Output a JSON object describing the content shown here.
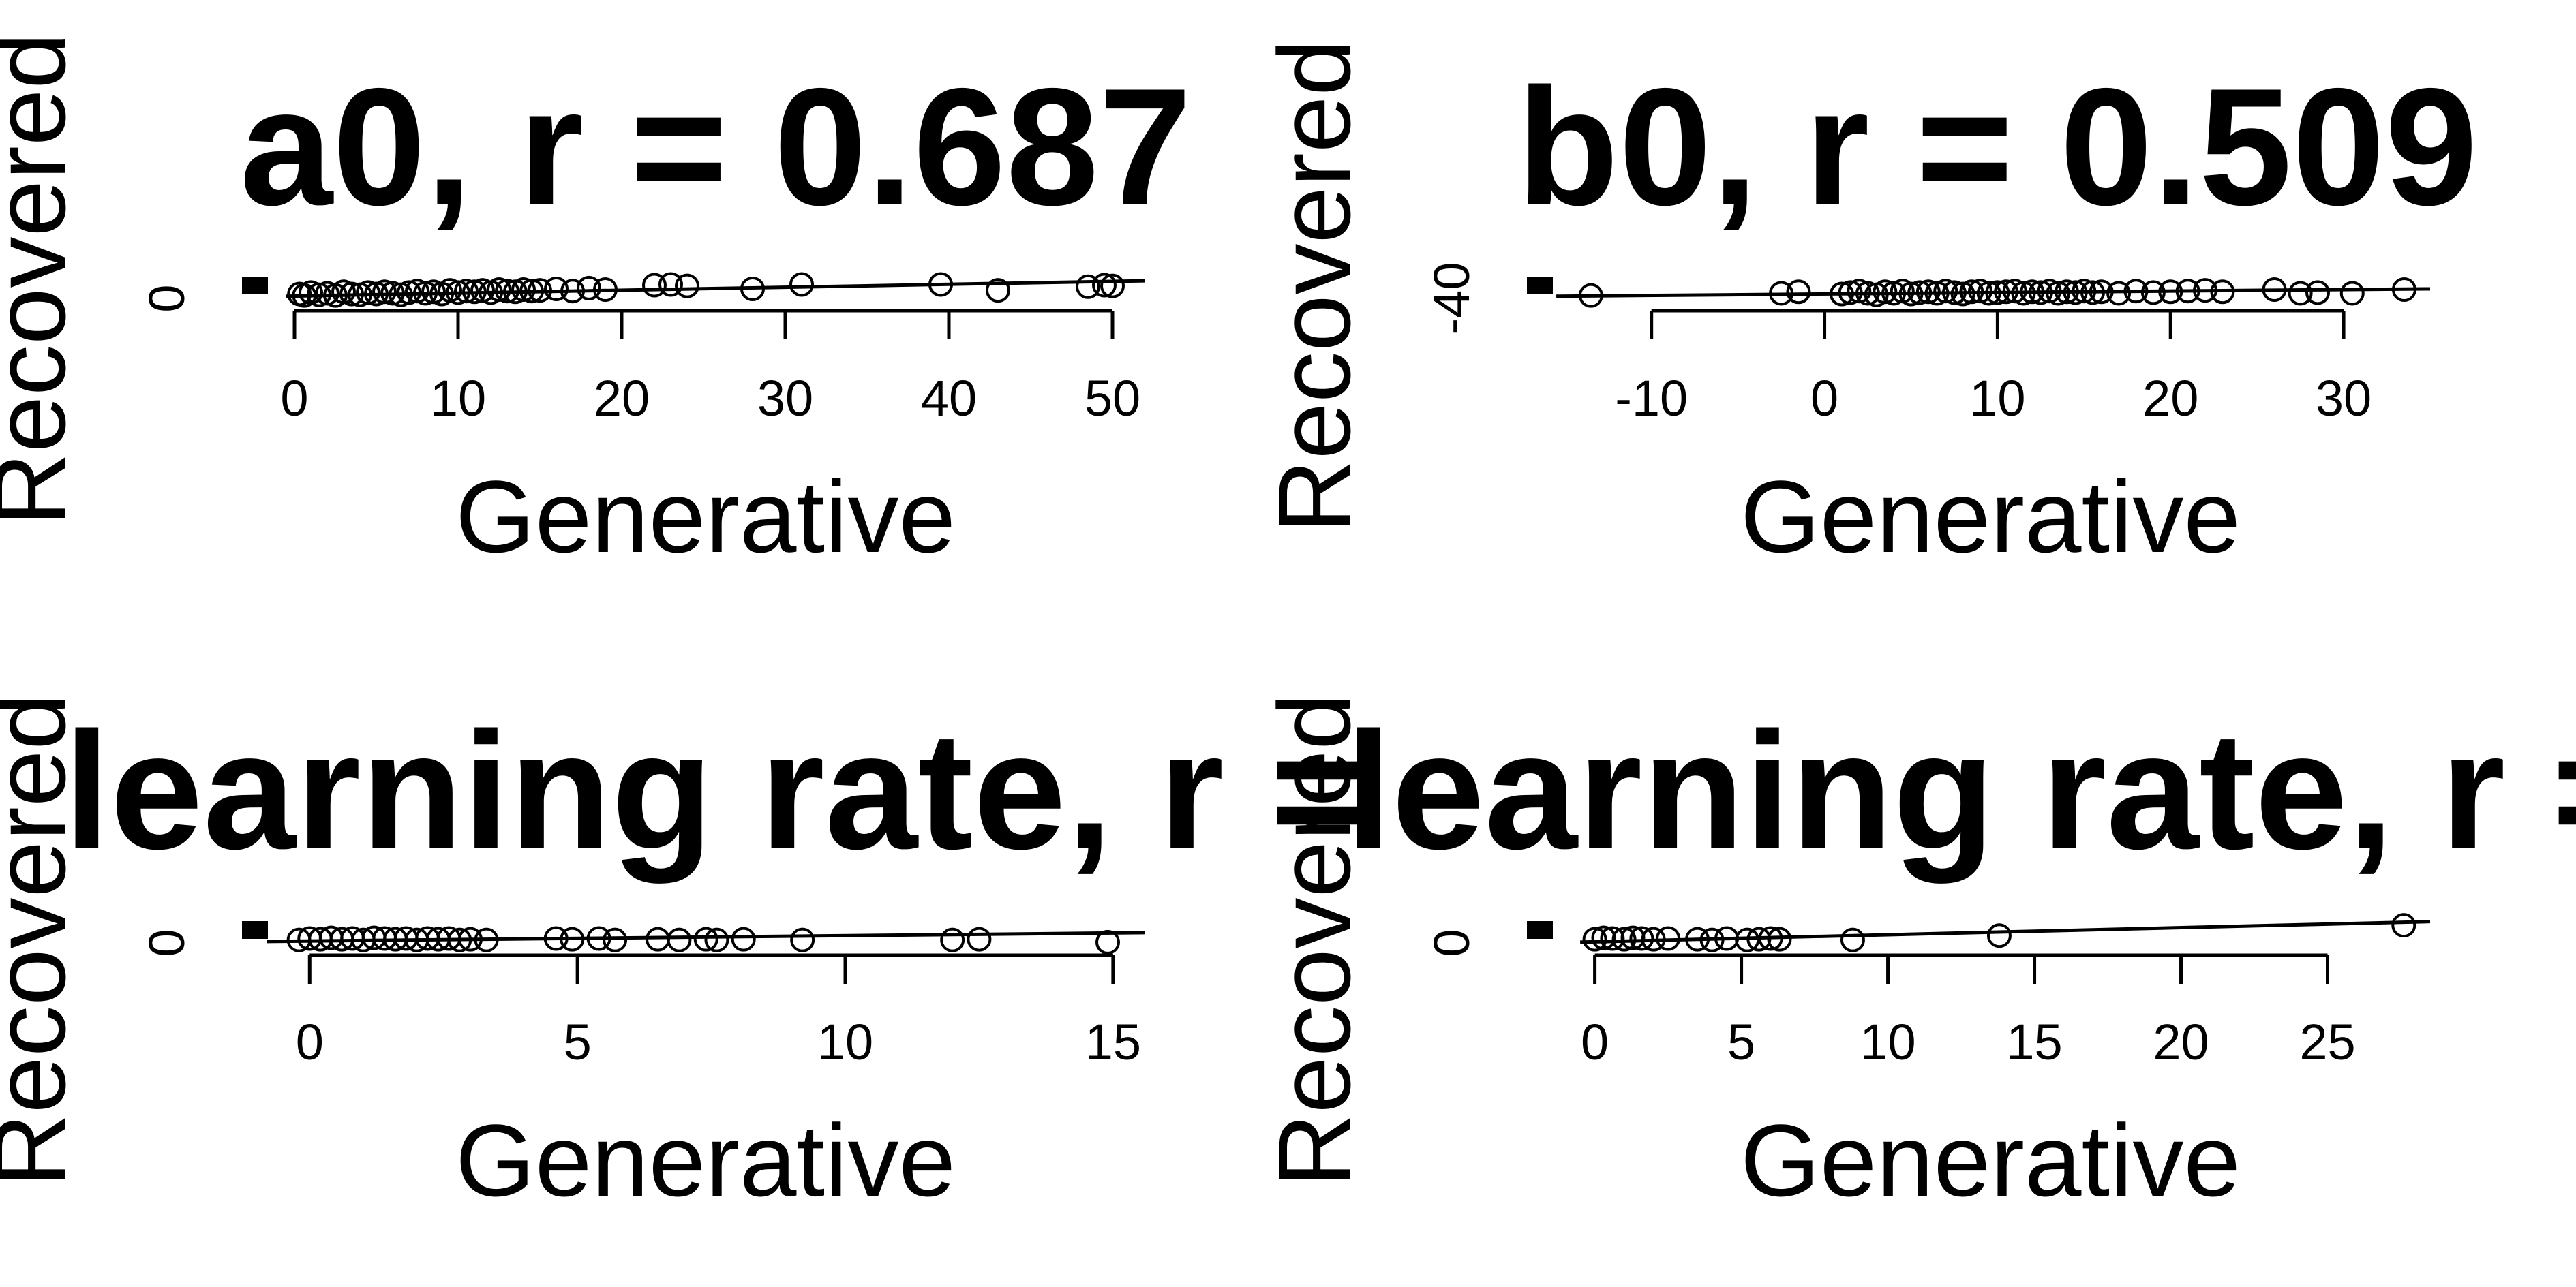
{
  "chart_data": [
    {
      "type": "scatter",
      "title": "a0, r = 0.687",
      "xlabel": "Generative",
      "ylabel": "Recovered",
      "xlim": [
        -3,
        52
      ],
      "ylim": [
        0,
        5
      ],
      "xticks": [
        0,
        10,
        20,
        30,
        40,
        50
      ],
      "xtick_labels": [
        "0",
        "10",
        "20",
        "30",
        "40",
        "50"
      ],
      "yticks": [
        0
      ],
      "ytick_labels": [
        "0"
      ],
      "points": [
        [
          0.3,
          0.6
        ],
        [
          0.6,
          0.4
        ],
        [
          1,
          0.8
        ],
        [
          1.5,
          0.5
        ],
        [
          2,
          0.7
        ],
        [
          2.5,
          0.4
        ],
        [
          3,
          0.9
        ],
        [
          3.5,
          0.6
        ],
        [
          4,
          0.5
        ],
        [
          4.5,
          0.8
        ],
        [
          5,
          0.6
        ],
        [
          5.5,
          0.9
        ],
        [
          6,
          0.7
        ],
        [
          6.5,
          0.5
        ],
        [
          7,
          0.8
        ],
        [
          7.5,
          1.0
        ],
        [
          8,
          0.7
        ],
        [
          8.5,
          0.9
        ],
        [
          9,
          0.6
        ],
        [
          9.5,
          1.1
        ],
        [
          10,
          0.8
        ],
        [
          10.5,
          1.0
        ],
        [
          11,
          0.9
        ],
        [
          11.5,
          1.1
        ],
        [
          12,
          0.8
        ],
        [
          12.5,
          1.2
        ],
        [
          13,
          1.0
        ],
        [
          13.5,
          0.9
        ],
        [
          14,
          1.2
        ],
        [
          14.5,
          1.0
        ],
        [
          15,
          1.1
        ],
        [
          16,
          1.3
        ],
        [
          17,
          1.0
        ],
        [
          18,
          1.4
        ],
        [
          19,
          1.2
        ],
        [
          22,
          1.8
        ],
        [
          23,
          1.9
        ],
        [
          24,
          1.7
        ],
        [
          28,
          1.3
        ],
        [
          31,
          1.9
        ],
        [
          39.5,
          1.9
        ],
        [
          43,
          1.1
        ],
        [
          48.5,
          1.6
        ],
        [
          49.5,
          1.8
        ],
        [
          50,
          1.7
        ]
      ],
      "fit": [
        [
          -0.5,
          0.3
        ],
        [
          52,
          2.4
        ]
      ],
      "legend_marks": 3
    },
    {
      "type": "scatter",
      "title": "b0, r = 0.509",
      "xlabel": "Generative",
      "ylabel": "Recovered",
      "xlim": [
        -17,
        35
      ],
      "ylim": [
        -40,
        -35
      ],
      "xticks": [
        -10,
        0,
        10,
        20,
        30
      ],
      "xtick_labels": [
        "-10",
        "0",
        "10",
        "20",
        "30"
      ],
      "yticks": [
        -40
      ],
      "ytick_labels": [
        "-40"
      ],
      "points": [
        [
          -13.5,
          -39.6
        ],
        [
          -2.5,
          -39.3
        ],
        [
          -1.5,
          -39.1
        ],
        [
          1,
          -39.4
        ],
        [
          1.5,
          -39.2
        ],
        [
          2,
          -39.0
        ],
        [
          2.5,
          -39.3
        ],
        [
          3,
          -39.5
        ],
        [
          3.5,
          -39.1
        ],
        [
          4,
          -39.3
        ],
        [
          4.5,
          -39.0
        ],
        [
          5,
          -39.4
        ],
        [
          5.5,
          -39.2
        ],
        [
          6,
          -39.1
        ],
        [
          6.5,
          -39.3
        ],
        [
          7,
          -39.0
        ],
        [
          7.5,
          -39.2
        ],
        [
          8,
          -39.4
        ],
        [
          8.5,
          -39.1
        ],
        [
          9,
          -39.0
        ],
        [
          9.5,
          -39.3
        ],
        [
          10,
          -39.2
        ],
        [
          10.5,
          -39.1
        ],
        [
          11,
          -39.0
        ],
        [
          11.5,
          -39.3
        ],
        [
          12,
          -39.1
        ],
        [
          12.5,
          -39.2
        ],
        [
          13,
          -39.0
        ],
        [
          13.5,
          -39.3
        ],
        [
          14,
          -39.1
        ],
        [
          14.5,
          -39.2
        ],
        [
          15,
          -39.0
        ],
        [
          15.5,
          -39.2
        ],
        [
          16,
          -39.1
        ],
        [
          17,
          -39.3
        ],
        [
          18,
          -39.0
        ],
        [
          19,
          -39.2
        ],
        [
          20,
          -39.1
        ],
        [
          21,
          -39.0
        ],
        [
          22,
          -38.9
        ],
        [
          23,
          -39.1
        ],
        [
          26,
          -38.8
        ],
        [
          27.5,
          -39.3
        ],
        [
          28.5,
          -39.2
        ],
        [
          30.5,
          -39.3
        ],
        [
          33.5,
          -38.8
        ]
      ],
      "fit": [
        [
          -15.5,
          -39.7
        ],
        [
          35,
          -38.7
        ]
      ],
      "legend_marks": 3
    },
    {
      "type": "scatter",
      "title": "learning rate, r = ",
      "xlabel": "Generative",
      "ylabel": "Recovered",
      "xlim": [
        -1.2,
        15.6
      ],
      "ylim": [
        0,
        5
      ],
      "xticks": [
        0,
        5,
        10,
        15
      ],
      "xtick_labels": [
        "0",
        "5",
        "10",
        "15"
      ],
      "yticks": [
        0
      ],
      "ytick_labels": [
        "0"
      ],
      "points": [
        [
          -0.2,
          0.4
        ],
        [
          0,
          0.6
        ],
        [
          0.2,
          0.5
        ],
        [
          0.4,
          0.7
        ],
        [
          0.6,
          0.5
        ],
        [
          0.8,
          0.6
        ],
        [
          1,
          0.4
        ],
        [
          1.2,
          0.7
        ],
        [
          1.4,
          0.6
        ],
        [
          1.6,
          0.5
        ],
        [
          1.8,
          0.6
        ],
        [
          2,
          0.4
        ],
        [
          2.2,
          0.6
        ],
        [
          2.4,
          0.5
        ],
        [
          2.6,
          0.6
        ],
        [
          2.8,
          0.4
        ],
        [
          3,
          0.5
        ],
        [
          3.3,
          0.4
        ],
        [
          4.6,
          0.6
        ],
        [
          4.9,
          0.5
        ],
        [
          5.4,
          0.6
        ],
        [
          5.7,
          0.4
        ],
        [
          6.5,
          0.5
        ],
        [
          6.9,
          0.4
        ],
        [
          7.4,
          0.5
        ],
        [
          7.6,
          0.4
        ],
        [
          8.1,
          0.5
        ],
        [
          9.2,
          0.4
        ],
        [
          12,
          0.4
        ],
        [
          12.5,
          0.5
        ],
        [
          14.9,
          0.1
        ]
      ],
      "fit": [
        [
          -0.8,
          0.2
        ],
        [
          15.6,
          1.4
        ]
      ],
      "legend_marks": 3
    },
    {
      "type": "scatter",
      "title": "learning rate, r = ",
      "xlabel": "Generative",
      "ylabel": "Recovered",
      "xlim": [
        -2.2,
        28.5
      ],
      "ylim": [
        0,
        5
      ],
      "xticks": [
        0,
        5,
        10,
        15,
        20,
        25
      ],
      "xtick_labels": [
        "0",
        "5",
        "10",
        "15",
        "20",
        "25"
      ],
      "yticks": [
        0
      ],
      "ytick_labels": [
        "0"
      ],
      "points": [
        [
          0,
          0.5
        ],
        [
          0.3,
          0.7
        ],
        [
          0.6,
          0.6
        ],
        [
          1,
          0.5
        ],
        [
          1.3,
          0.7
        ],
        [
          1.6,
          0.6
        ],
        [
          2,
          0.5
        ],
        [
          2.5,
          0.6
        ],
        [
          3.5,
          0.5
        ],
        [
          4,
          0.4
        ],
        [
          4.5,
          0.6
        ],
        [
          5.2,
          0.4
        ],
        [
          5.6,
          0.5
        ],
        [
          6,
          0.6
        ],
        [
          6.3,
          0.5
        ],
        [
          8.8,
          0.4
        ],
        [
          13.8,
          1.0
        ],
        [
          27.6,
          2.4
        ]
      ],
      "fit": [
        [
          -0.5,
          0.1
        ],
        [
          28.5,
          2.9
        ]
      ],
      "legend_marks": 3
    }
  ]
}
